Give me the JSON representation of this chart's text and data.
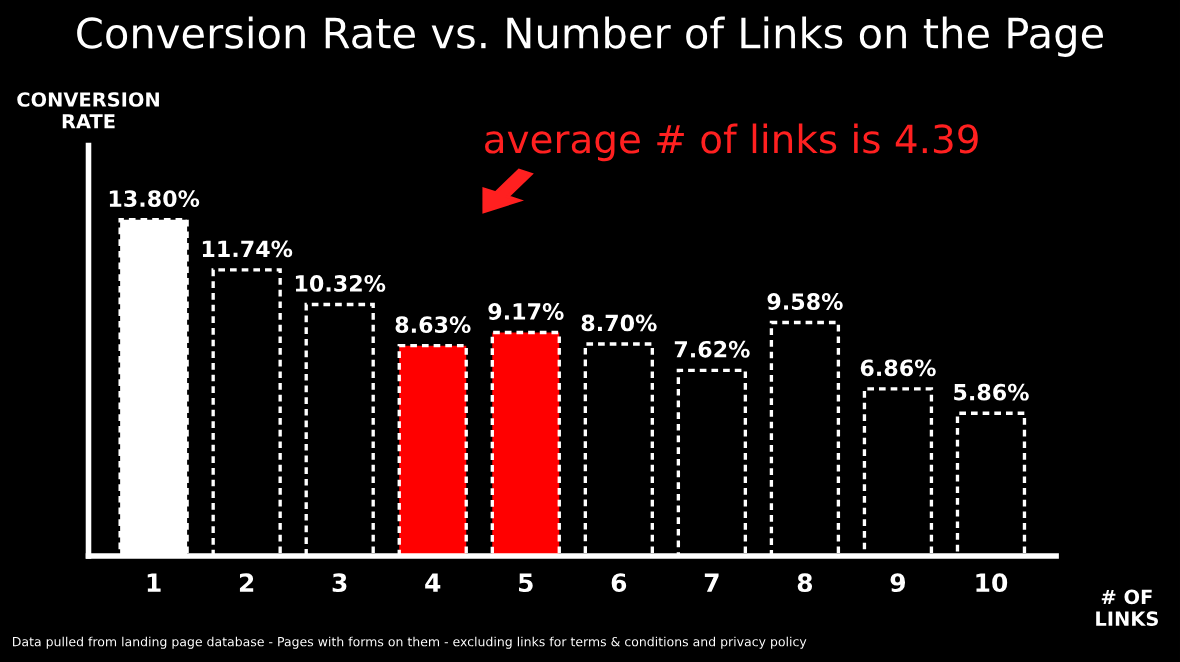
{
  "chart_data": {
    "type": "bar",
    "title": "Conversion Rate vs. Number of Links on the Page",
    "ylabel": "CONVERSION\nRATE",
    "xlabel": "# OF\nLINKS",
    "categories": [
      "1",
      "2",
      "3",
      "4",
      "5",
      "6",
      "7",
      "8",
      "9",
      "10"
    ],
    "values": [
      13.8,
      11.74,
      10.32,
      8.63,
      9.17,
      8.7,
      7.62,
      9.58,
      6.86,
      5.86
    ],
    "value_labels": [
      "13.80%",
      "11.74%",
      "10.32%",
      "8.63%",
      "9.17%",
      "8.70%",
      "7.62%",
      "9.58%",
      "6.86%",
      "5.86%"
    ],
    "colors": [
      "#ffffff",
      "#000000",
      "#000000",
      "#ff0000",
      "#ff0000",
      "#000000",
      "#000000",
      "#000000",
      "#000000",
      "#000000"
    ],
    "annotations": [
      "average # of links is 4.39",
      "Data pulled from landing page database - Pages with forms on them - excluding links for terms & conditions and privacy policy"
    ]
  }
}
